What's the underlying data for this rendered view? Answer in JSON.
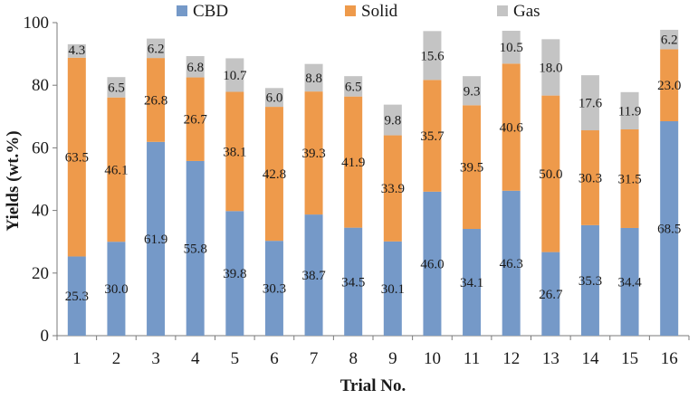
{
  "chart_data": {
    "type": "bar",
    "stacked": true,
    "title": "",
    "xlabel": "Trial No.",
    "ylabel": "Yields (wt.%)",
    "ylim": [
      0,
      100
    ],
    "yticks": [
      0,
      20,
      40,
      60,
      80,
      100
    ],
    "grid": false,
    "legend_position": "top",
    "categories": [
      "1",
      "2",
      "3",
      "4",
      "5",
      "6",
      "7",
      "8",
      "9",
      "10",
      "11",
      "12",
      "13",
      "14",
      "15",
      "16"
    ],
    "series": [
      {
        "name": "CBD",
        "color": "#7599C8",
        "values": [
          25.3,
          30.0,
          61.9,
          55.8,
          39.8,
          30.3,
          38.7,
          34.5,
          30.1,
          46.0,
          34.1,
          46.3,
          26.7,
          35.3,
          34.4,
          68.5
        ],
        "labels": [
          "25.3",
          "30.0",
          "61.9",
          "55.8",
          "39.8",
          "30.3",
          "38.7",
          "34.5",
          "30.1",
          "46.0",
          "34.1",
          "46.3",
          "26.7",
          "35.3",
          "34.4",
          "68.5"
        ]
      },
      {
        "name": "Solid",
        "color": "#EE9A4B",
        "values": [
          63.5,
          46.1,
          26.8,
          26.7,
          38.1,
          42.8,
          39.3,
          41.9,
          33.9,
          35.7,
          39.5,
          40.6,
          50.0,
          30.3,
          31.5,
          23.0
        ],
        "labels": [
          "63.5",
          "46.1",
          "26.8",
          "26.7",
          "38.1",
          "42.8",
          "39.3",
          "41.9",
          "33.9",
          "35.7",
          "39.5",
          "40.6",
          "50.0",
          "30.3",
          "31.5",
          "23.0"
        ]
      },
      {
        "name": "Gas",
        "color": "#C4C4C4",
        "values": [
          4.3,
          6.5,
          6.2,
          6.8,
          10.7,
          6.0,
          8.8,
          6.5,
          9.8,
          15.6,
          9.3,
          10.5,
          18.0,
          17.6,
          11.9,
          6.2
        ],
        "labels": [
          "4.3",
          "6.5",
          "6.2",
          "6.8",
          "10.7",
          "6.0",
          "8.8",
          "6.5",
          "9.8",
          "15.6",
          "9.3",
          "10.5",
          "18.0",
          "17.6",
          "11.9",
          "6.2"
        ]
      }
    ]
  }
}
